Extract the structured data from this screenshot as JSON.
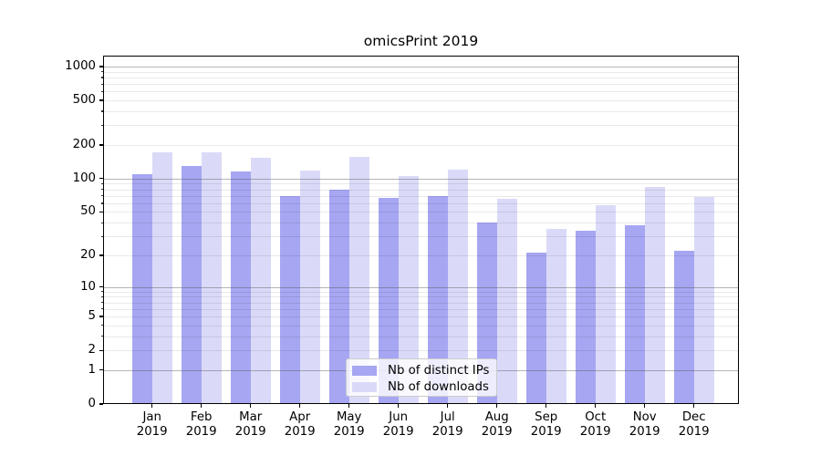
{
  "chart_data": {
    "type": "bar",
    "title": "omicsPrint 2019",
    "categories": [
      "Jan",
      "Feb",
      "Mar",
      "Apr",
      "May",
      "Jun",
      "Jul",
      "Aug",
      "Sep",
      "Oct",
      "Nov",
      "Dec"
    ],
    "x_tick_second_line": "2019",
    "series": [
      {
        "name": "Nb of distinct IPs",
        "color": "#a6a6f2",
        "values": [
          110,
          129,
          115,
          70,
          79,
          67,
          69,
          40,
          21,
          34,
          38,
          22
        ]
      },
      {
        "name": "Nb of downloads",
        "color": "#dadaf8",
        "values": [
          171,
          173,
          155,
          118,
          157,
          106,
          120,
          66,
          35,
          58,
          84,
          68
        ]
      }
    ],
    "xlabel": "",
    "ylabel": "",
    "yscale": "symlog (pixel position proportional to ln(1+v))",
    "ylim": [
      0,
      1252
    ],
    "y_ticks": [
      0,
      1,
      2,
      5,
      10,
      20,
      50,
      100,
      200,
      500,
      1000
    ],
    "y_major_gridlines": [
      1,
      10,
      100,
      1000
    ],
    "y_minor_gridlines": [
      2,
      3,
      4,
      5,
      6,
      7,
      8,
      9,
      20,
      30,
      40,
      50,
      60,
      70,
      80,
      90,
      200,
      300,
      400,
      500,
      600,
      700,
      800,
      900
    ],
    "grid": true,
    "legend": {
      "position": "lower center"
    }
  },
  "colors": {
    "bar_dark": "#a6a6f2",
    "bar_light": "#dadaf8",
    "spine": "#000000",
    "major_grid": "#b0b0b0",
    "minor_grid": "#e9e9e9",
    "legend_border": "#cccccc",
    "text": "#000000",
    "background": "#ffffff"
  }
}
